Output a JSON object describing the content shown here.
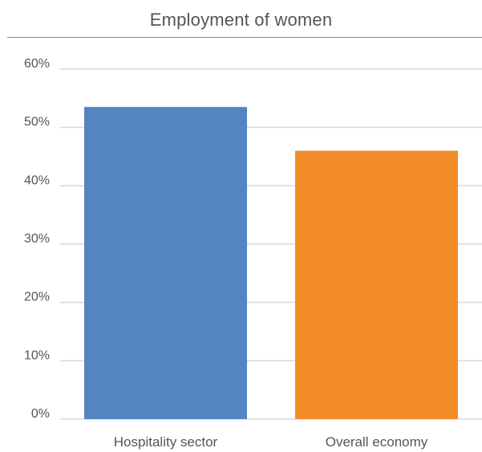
{
  "chart_data": {
    "type": "bar",
    "title": "Employment of women",
    "categories": [
      "Hospitality sector",
      "Overall economy"
    ],
    "values": [
      53.5,
      46
    ],
    "unit": "%",
    "ylim": [
      0,
      60
    ],
    "yticks": [
      0,
      10,
      20,
      30,
      40,
      50,
      60
    ],
    "ytick_labels": [
      "0%",
      "10%",
      "20%",
      "30%",
      "40%",
      "50%",
      "60%"
    ],
    "grid": true,
    "legend": "none",
    "colors": [
      "#5585c1",
      "#f28c28"
    ],
    "gridline_color": "#d9d9d9",
    "title_rule_color": "#4a9ad6"
  }
}
